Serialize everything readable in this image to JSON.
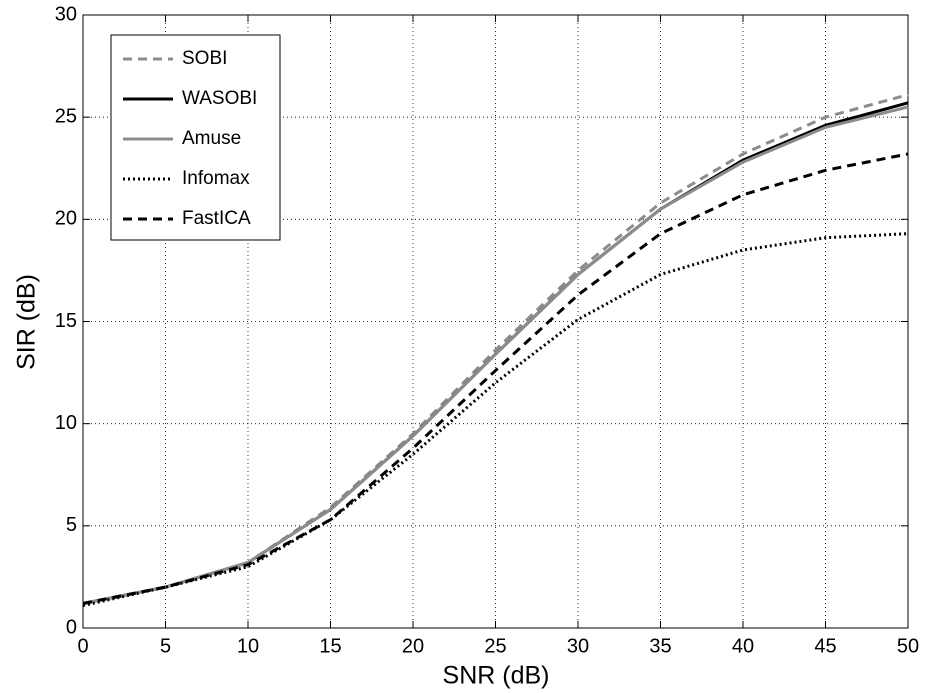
{
  "chart_data": {
    "type": "line",
    "x_label": "SNR (dB)",
    "y_label": "SIR (dB)",
    "x": [
      0,
      5,
      10,
      15,
      20,
      25,
      30,
      35,
      40,
      45,
      50
    ],
    "series": [
      {
        "name": "SOBI",
        "color": "#8c8c8c",
        "dash": "dashed",
        "values": [
          1.2,
          2.0,
          3.2,
          5.9,
          9.5,
          13.6,
          17.5,
          20.8,
          23.2,
          25.0,
          26.1
        ]
      },
      {
        "name": "WASOBI",
        "color": "#000000",
        "dash": "solid",
        "values": [
          1.2,
          2.0,
          3.2,
          5.8,
          9.4,
          13.4,
          17.3,
          20.5,
          22.9,
          24.6,
          25.7
        ]
      },
      {
        "name": "Amuse",
        "color": "#8c8c8c",
        "dash": "solid",
        "values": [
          1.2,
          2.0,
          3.2,
          5.8,
          9.4,
          13.4,
          17.3,
          20.5,
          22.8,
          24.5,
          25.5
        ]
      },
      {
        "name": "Infomax",
        "color": "#000000",
        "dash": "dotted",
        "values": [
          1.1,
          2.0,
          3.0,
          5.3,
          8.5,
          12.0,
          15.1,
          17.3,
          18.5,
          19.1,
          19.3
        ]
      },
      {
        "name": "FastICA",
        "color": "#000000",
        "dash": "dashed",
        "values": [
          1.2,
          2.0,
          3.1,
          5.3,
          8.8,
          12.6,
          16.3,
          19.3,
          21.2,
          22.4,
          23.2
        ]
      }
    ],
    "xlim": [
      0,
      50
    ],
    "xticks": [
      0,
      5,
      10,
      15,
      20,
      25,
      30,
      35,
      40,
      45,
      50
    ],
    "ylim": [
      0,
      30
    ],
    "yticks": [
      0,
      5,
      10,
      15,
      20,
      25,
      30
    ],
    "grid": true,
    "legend": "upper left"
  }
}
